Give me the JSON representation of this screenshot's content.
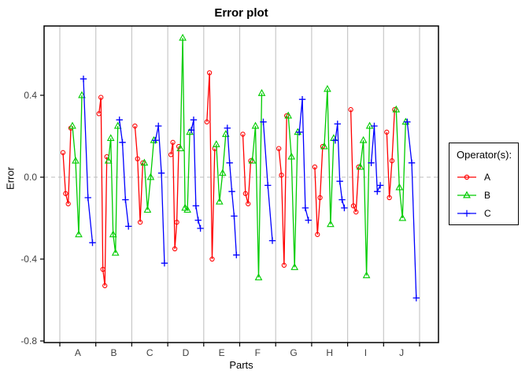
{
  "title": "Error plot",
  "chart_data": {
    "type": "line",
    "title": "Error plot",
    "xlabel": "Parts",
    "ylabel": "Error",
    "categories": [
      "A",
      "B",
      "C",
      "D",
      "E",
      "F",
      "G",
      "H",
      "I",
      "J"
    ],
    "yticks": [
      -0.8,
      -0.4,
      0.0,
      0.4
    ],
    "ytick_labels": [
      "-0.8",
      "-0.4",
      "0.0",
      "0.4"
    ],
    "ylim": [
      -0.8,
      0.74
    ],
    "grid": "vertical-part-separators",
    "zero_line": {
      "value": 0.0,
      "style": "dashed",
      "color": "#bbbbbb"
    },
    "panel_border_color": "#000000",
    "gridline_color": "#c8c8c8",
    "tick_label_color": "#404040",
    "legend": {
      "title": "Operator(s):",
      "position": "right",
      "entries": [
        {
          "label": "A",
          "color": "#ff0000",
          "marker": "circle"
        },
        {
          "label": "B",
          "color": "#00cc00",
          "marker": "triangle"
        },
        {
          "label": "C",
          "color": "#0000ff",
          "marker": "plus"
        }
      ]
    },
    "series": [
      {
        "name": "A",
        "color": "#ff0000",
        "marker": "circle",
        "values_by_part": {
          "A": [
            0.12,
            -0.08,
            -0.13,
            0.24
          ],
          "B": [
            0.31,
            0.39,
            -0.45,
            -0.53,
            0.1
          ],
          "C": [
            0.25,
            0.09,
            -0.22,
            0.07
          ],
          "D": [
            0.11,
            0.17,
            -0.35,
            -0.22,
            0.15
          ],
          "E": [
            0.27,
            0.51,
            -0.4,
            0.14
          ],
          "F": [
            0.21,
            -0.08,
            -0.13,
            0.08
          ],
          "G": [
            0.14,
            0.01,
            -0.43,
            0.3
          ],
          "H": [
            0.05,
            -0.28,
            -0.1,
            0.15
          ],
          "I": [
            0.33,
            -0.14,
            -0.17,
            0.05
          ],
          "J": [
            0.22,
            -0.1,
            0.08,
            0.33
          ]
        }
      },
      {
        "name": "B",
        "color": "#00cc00",
        "marker": "triangle",
        "values_by_part": {
          "A": [
            0.25,
            0.08,
            -0.28,
            0.4
          ],
          "B": [
            0.08,
            0.19,
            -0.28,
            -0.37,
            0.25
          ],
          "C": [
            0.07,
            -0.16,
            0.0,
            0.18
          ],
          "D": [
            0.14,
            0.68,
            -0.15,
            -0.16,
            0.22
          ],
          "E": [
            0.16,
            -0.12,
            0.02,
            0.21
          ],
          "F": [
            0.08,
            0.25,
            -0.49,
            0.41
          ],
          "G": [
            0.3,
            0.1,
            -0.44,
            0.22
          ],
          "H": [
            0.15,
            0.43,
            -0.23,
            0.19
          ],
          "I": [
            0.05,
            0.18,
            -0.48,
            0.25
          ],
          "J": [
            0.33,
            -0.05,
            -0.2,
            0.27
          ]
        }
      },
      {
        "name": "C",
        "color": "#0000ff",
        "marker": "plus",
        "values_by_part": {
          "A": [
            0.48,
            -0.1,
            -0.32
          ],
          "B": [
            0.28,
            0.17,
            -0.11,
            -0.24
          ],
          "C": [
            0.18,
            0.25,
            0.02,
            -0.42
          ],
          "D": [
            0.23,
            0.28,
            -0.14,
            -0.21,
            -0.25
          ],
          "E": [
            0.24,
            0.07,
            -0.07,
            -0.19,
            -0.38
          ],
          "F": [
            0.27,
            -0.04,
            -0.31
          ],
          "G": [
            0.22,
            0.38,
            -0.15,
            -0.21
          ],
          "H": [
            0.18,
            0.26,
            -0.02,
            -0.11,
            -0.15
          ],
          "I": [
            0.07,
            0.25,
            -0.07,
            -0.04
          ],
          "J": [
            0.27,
            0.07,
            -0.59
          ]
        }
      }
    ]
  }
}
